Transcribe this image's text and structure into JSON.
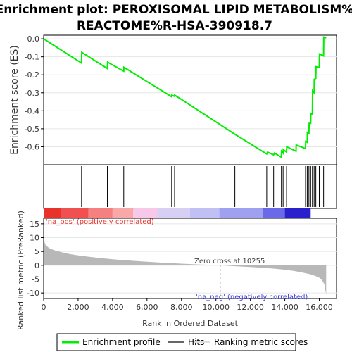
{
  "chart_data": [
    {
      "type": "line",
      "title": "Enrichment plot: PEROXISOMAL LIPID METABOLISM%\nREACTOME%R-HSA-390918.7",
      "ylabel": "Enrichment score (ES)",
      "ylim": [
        -0.7,
        0.02
      ],
      "yticks": [
        0.0,
        -0.1,
        -0.2,
        -0.3,
        -0.4,
        -0.5,
        -0.6
      ],
      "ytick_labels": [
        "0.0",
        "-0.1",
        "-0.2",
        "-0.3",
        "-0.4",
        "-0.5",
        "-0.6"
      ],
      "xlim": [
        0,
        17000
      ],
      "series": [
        {
          "name": "Enrichment profile",
          "color": "#00ee00",
          "x": [
            0,
            2200,
            2210,
            3700,
            3710,
            4650,
            4660,
            7430,
            7440,
            7600,
            7610,
            11100,
            12950,
            13000,
            13350,
            13400,
            13800,
            13810,
            13900,
            13910,
            14100,
            14110,
            14650,
            14660,
            15200,
            15210,
            15300,
            15310,
            15400,
            15410,
            15500,
            15510,
            15600,
            15610,
            15700,
            15710,
            15800,
            15810,
            16000,
            16010,
            16250,
            16260,
            16400
          ],
          "y": [
            0.0,
            -0.135,
            -0.075,
            -0.165,
            -0.13,
            -0.18,
            -0.158,
            -0.322,
            -0.313,
            -0.32,
            -0.313,
            -0.53,
            -0.64,
            -0.63,
            -0.645,
            -0.635,
            -0.658,
            -0.625,
            -0.635,
            -0.615,
            -0.63,
            -0.6,
            -0.625,
            -0.59,
            -0.61,
            -0.57,
            -0.575,
            -0.52,
            -0.525,
            -0.47,
            -0.47,
            -0.415,
            -0.42,
            -0.29,
            -0.3,
            -0.225,
            -0.22,
            -0.155,
            -0.16,
            -0.085,
            -0.095,
            0.01,
            0.005
          ]
        }
      ]
    },
    {
      "type": "heatmap",
      "hits": [
        2200,
        3700,
        4650,
        7430,
        7600,
        11100,
        12950,
        13350,
        13800,
        13900,
        14100,
        14650,
        15200,
        15300,
        15400,
        15500,
        15600,
        15700,
        15800,
        16000,
        16250
      ],
      "gradient_colors": [
        "#e8322c",
        "#f05050",
        "#f58080",
        "#f8a8a8",
        "#f8c8e8",
        "#d8d0f4",
        "#c0c0f4",
        "#a0a0f0",
        "#6a6ae8",
        "#2a20cc"
      ],
      "gradient_stops_x": [
        0,
        1000,
        2600,
        4000,
        5200,
        6600,
        8500,
        10200,
        12700,
        14000,
        15500
      ]
    },
    {
      "type": "area",
      "ylabel": "Ranked list metric (PreRanked)",
      "xlabel": "Rank in Ordered Dataset",
      "ylim": [
        -12,
        17
      ],
      "yticks": [
        15,
        10,
        5,
        0,
        -5,
        -10
      ],
      "ytick_labels": [
        "15",
        "10",
        "5",
        "0",
        "-5",
        "-10"
      ],
      "xlim": [
        0,
        17000
      ],
      "xticks": [
        0,
        2000,
        4000,
        6000,
        8000,
        10000,
        12000,
        14000,
        16000
      ],
      "xtick_labels": [
        "0",
        "2,000",
        "4,000",
        "6,000",
        "8,000",
        "10,000",
        "12,000",
        "14,000",
        "16,000"
      ],
      "x": [
        0,
        100,
        300,
        600,
        1000,
        1500,
        2000,
        3000,
        4000,
        5000,
        6000,
        7000,
        8000,
        9000,
        10000,
        10255,
        11000,
        12000,
        13000,
        13500,
        14000,
        14500,
        15000,
        15500,
        15800,
        16000,
        16100,
        16200,
        16300,
        16350,
        16400
      ],
      "values": [
        9.5,
        7.5,
        6.3,
        5.5,
        4.8,
        4.1,
        3.6,
        2.8,
        2.2,
        1.7,
        1.3,
        0.9,
        0.6,
        0.3,
        0.1,
        0.0,
        -0.3,
        -0.6,
        -1.0,
        -1.3,
        -1.6,
        -2.0,
        -2.6,
        -3.3,
        -3.9,
        -4.5,
        -5.0,
        -5.8,
        -7.0,
        -9.0,
        -10.5
      ],
      "annotations": {
        "pos": "'na_pos' (positively correlated)",
        "neg": "'na_neg' (negatively correlated)",
        "zero_cross": "Zero cross at 10255"
      },
      "zero_cross": 10255
    }
  ],
  "legend": {
    "items": [
      "Enrichment profile",
      "Hits",
      "Ranking metric scores"
    ],
    "colors": [
      "#00ee00",
      "#666666",
      "#dddddd"
    ]
  }
}
